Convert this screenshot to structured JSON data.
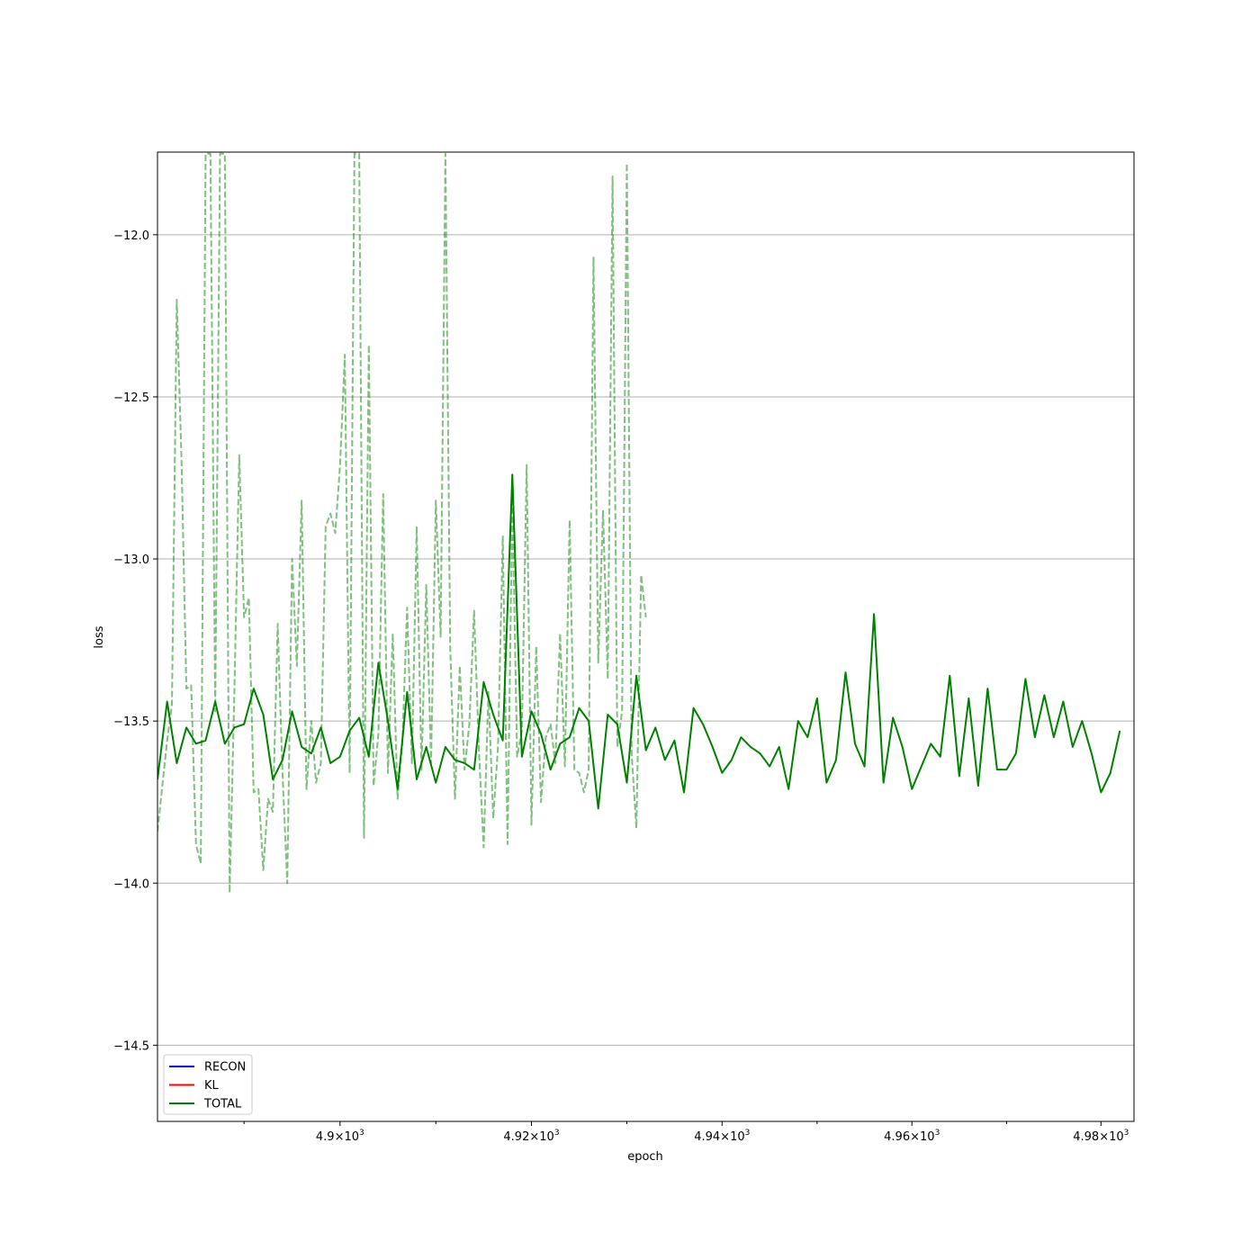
{
  "chart_data": {
    "type": "line",
    "xlabel": "epoch",
    "ylabel": "loss",
    "xlim": [
      4881,
      4983.5
    ],
    "ylim": [
      -14.735,
      -11.745
    ],
    "x_scale": "log",
    "grid": {
      "y": true,
      "x": false
    },
    "legend_placement": "lower-left",
    "x_ticks": [
      {
        "value": 4900,
        "mantissa": "4.9",
        "base": "10",
        "exponent": "3"
      },
      {
        "value": 4920,
        "mantissa": "4.92",
        "base": "10",
        "exponent": "3"
      },
      {
        "value": 4940,
        "mantissa": "4.94",
        "base": "10",
        "exponent": "3"
      },
      {
        "value": 4960,
        "mantissa": "4.96",
        "base": "10",
        "exponent": "3"
      },
      {
        "value": 4980,
        "mantissa": "4.98",
        "base": "10",
        "exponent": "3"
      }
    ],
    "y_ticks": [
      {
        "value": -12.0,
        "label": "−12.0"
      },
      {
        "value": -12.5,
        "label": "−12.5"
      },
      {
        "value": -13.0,
        "label": "−13.0"
      },
      {
        "value": -13.5,
        "label": "−13.5"
      },
      {
        "value": -14.0,
        "label": "−14.0"
      },
      {
        "value": -14.5,
        "label": "−14.5"
      }
    ],
    "legend": [
      {
        "name": "RECON",
        "color": "#0000cc"
      },
      {
        "name": "KL",
        "color": "#ff0000"
      },
      {
        "name": "TOTAL",
        "color": "#008000"
      }
    ],
    "x_start": 4881,
    "series": [
      {
        "name": "TOTAL",
        "style": "solid",
        "color": "#008000",
        "x_step": 1,
        "values": [
          -13.68,
          -13.44,
          -13.63,
          -13.52,
          -13.57,
          -13.56,
          -13.44,
          -13.57,
          -13.52,
          -13.51,
          -13.4,
          -13.48,
          -13.68,
          -13.62,
          -13.47,
          -13.58,
          -13.6,
          -13.52,
          -13.63,
          -13.61,
          -13.53,
          -13.49,
          -13.61,
          -13.32,
          -13.5,
          -13.71,
          -13.41,
          -13.68,
          -13.58,
          -13.69,
          -13.58,
          -13.62,
          -13.63,
          -13.65,
          -13.38,
          -13.48,
          -13.56,
          -12.74,
          -13.61,
          -13.47,
          -13.54,
          -13.65,
          -13.57,
          -13.55,
          -13.46,
          -13.5,
          -13.77,
          -13.48,
          -13.51,
          -13.69,
          -13.36,
          -13.59,
          -13.52,
          -13.62,
          -13.56,
          -13.72,
          -13.46,
          -13.51,
          -13.58,
          -13.66,
          -13.62,
          -13.55,
          -13.58,
          -13.6,
          -13.64,
          -13.58,
          -13.71,
          -13.5,
          -13.55,
          -13.43,
          -13.69,
          -13.62,
          -13.35,
          -13.57,
          -13.64,
          -13.17,
          -13.69,
          -13.49,
          -13.58,
          -13.71,
          -13.64,
          -13.57,
          -13.61,
          -13.36,
          -13.67,
          -13.43,
          -13.7,
          -13.4,
          -13.65,
          -13.65,
          -13.6,
          -13.37,
          -13.55,
          -13.42,
          -13.55,
          -13.44,
          -13.58,
          -13.5,
          -13.6,
          -13.72,
          -13.66,
          -13.53
        ]
      },
      {
        "name": "",
        "style": "dashed",
        "color": "#008000",
        "x_step": 0.5,
        "values": [
          -13.84,
          -13.7,
          -13.56,
          -13.45,
          -12.2,
          -12.7,
          -13.4,
          -13.39,
          -13.88,
          -13.94,
          -11.75,
          -11.75,
          -13.47,
          -11.75,
          -11.75,
          -14.03,
          -13.4,
          -12.68,
          -13.18,
          -13.12,
          -13.72,
          -13.71,
          -13.96,
          -13.74,
          -13.78,
          -13.2,
          -13.66,
          -14.0,
          -13.0,
          -13.33,
          -12.82,
          -13.71,
          -13.5,
          -13.69,
          -13.63,
          -12.9,
          -12.86,
          -12.92,
          -12.71,
          -12.37,
          -13.66,
          -11.75,
          -11.75,
          -13.86,
          -12.34,
          -13.7,
          -13.54,
          -12.8,
          -13.66,
          -13.23,
          -13.74,
          -13.57,
          -13.15,
          -13.63,
          -12.9,
          -13.65,
          -13.08,
          -13.63,
          -12.82,
          -13.24,
          -11.75,
          -13.27,
          -13.74,
          -13.33,
          -13.65,
          -13.51,
          -13.16,
          -13.59,
          -13.89,
          -13.41,
          -13.8,
          -13.58,
          -12.93,
          -13.88,
          -12.81,
          -13.61,
          -13.53,
          -12.71,
          -13.82,
          -13.27,
          -13.75,
          -13.55,
          -13.51,
          -13.63,
          -13.23,
          -13.64,
          -12.88,
          -13.65,
          -13.66,
          -13.72,
          -13.65,
          -12.07,
          -13.32,
          -12.85,
          -13.37,
          -11.82,
          -13.58,
          -13.47,
          -11.78,
          -13.6,
          -13.83,
          -13.05,
          -13.18
        ]
      }
    ]
  }
}
